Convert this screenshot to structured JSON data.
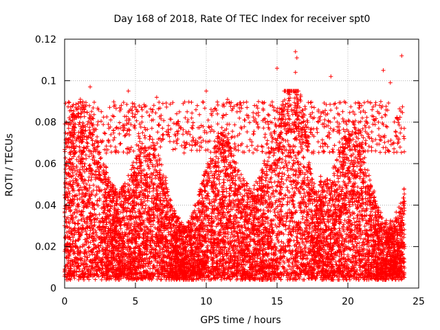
{
  "chart_data": {
    "type": "scatter",
    "title": "Day 168 of 2018, Rate Of TEC Index for receiver spt0",
    "xlabel": "GPS time / hours",
    "ylabel": "ROTI / TECUs",
    "xlim": [
      0,
      25
    ],
    "ylim": [
      0,
      0.12
    ],
    "x_ticks": [
      "0",
      "5",
      "10",
      "15",
      "20",
      "25"
    ],
    "y_ticks": [
      "0",
      "0.02",
      "0.04",
      "0.06",
      "0.08",
      "0.1",
      "0.12"
    ],
    "grid": true,
    "marker": "+",
    "series": [
      {
        "name": "ROTI",
        "color": "#ff0000",
        "description": "dense scatter of ROTI values mostly between 0.005 and 0.08 TECU across 0-24 h",
        "highlight_points": [
          {
            "x": 1.8,
            "y": 0.097
          },
          {
            "x": 4.5,
            "y": 0.095
          },
          {
            "x": 6.5,
            "y": 0.092
          },
          {
            "x": 10.0,
            "y": 0.095
          },
          {
            "x": 11.5,
            "y": 0.091
          },
          {
            "x": 15.0,
            "y": 0.106
          },
          {
            "x": 16.3,
            "y": 0.114
          },
          {
            "x": 16.4,
            "y": 0.111
          },
          {
            "x": 16.3,
            "y": 0.104
          },
          {
            "x": 18.8,
            "y": 0.102
          },
          {
            "x": 22.5,
            "y": 0.105
          },
          {
            "x": 23.0,
            "y": 0.099
          },
          {
            "x": 23.8,
            "y": 0.112
          }
        ]
      }
    ]
  }
}
